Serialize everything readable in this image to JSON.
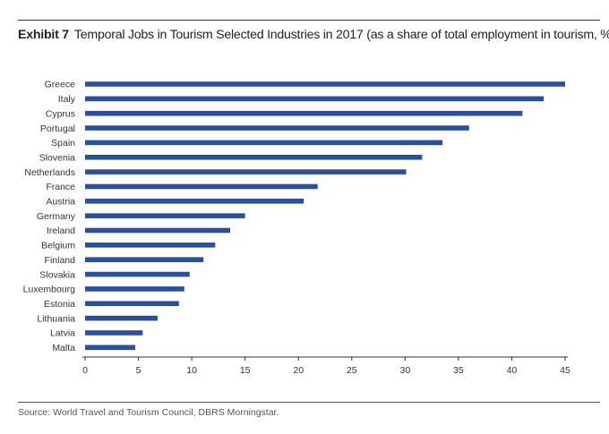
{
  "header": {
    "exhibit": "Exhibit 7",
    "title": "Temporal Jobs in Tourism Selected Industries in 2017 (as a share of total employment in tourism, %)"
  },
  "source": "Source: World Travel and Tourism Council, DBRS Morningstar.",
  "colors": {
    "bar": "#2b4f9a",
    "axis": "#333333"
  },
  "chart_data": {
    "type": "bar",
    "orientation": "horizontal",
    "title": "Temporal Jobs in Tourism Selected Industries in 2017 (as a share of total employment in tourism, %)",
    "xlabel": "",
    "ylabel": "",
    "categories": [
      "Greece",
      "Italy",
      "Cyprus",
      "Portugal",
      "Spain",
      "Slovenia",
      "Netherlands",
      "France",
      "Austria",
      "Germany",
      "Ireland",
      "Belgium",
      "Finland",
      "Slovakia",
      "Luxembourg",
      "Estonia",
      "Lithuania",
      "Latvia",
      "Malta"
    ],
    "values": [
      45.0,
      43.0,
      41.0,
      36.0,
      33.5,
      31.6,
      30.1,
      21.8,
      20.5,
      15.0,
      13.6,
      12.2,
      11.1,
      9.8,
      9.3,
      8.8,
      6.8,
      5.4,
      4.7
    ],
    "xlim": [
      0,
      45
    ],
    "xticks": [
      0,
      5,
      10,
      15,
      20,
      25,
      30,
      35,
      40,
      45
    ],
    "grid": false,
    "legend": "none"
  }
}
